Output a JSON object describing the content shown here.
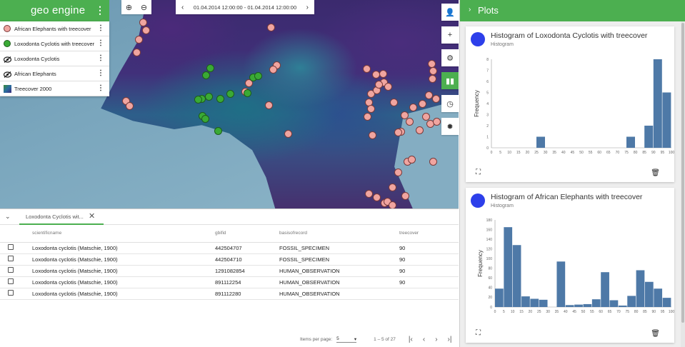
{
  "app": {
    "brand": "geo engine"
  },
  "layers": [
    {
      "label": "African Elephants with treecover",
      "symbol": "pink-point",
      "color": "#f0a5a0"
    },
    {
      "label": "Loxodonta Cyclotis with treecover",
      "symbol": "green-point",
      "color": "#3aaa35"
    },
    {
      "label": "Loxodonta Cyclotis",
      "symbol": "eye-off-icon"
    },
    {
      "label": "African Elephants",
      "symbol": "eye-off-icon"
    },
    {
      "label": "Treecover 2000",
      "symbol": "gradient-raster"
    }
  ],
  "time": {
    "range": "01.04.2014 12:00:00 - 01.04.2014 12:00:00"
  },
  "table": {
    "tab_label": "Loxodonta Cyclotis wit...",
    "columns": [
      "scientificname",
      "gbifid",
      "basisofrecord",
      "treecover"
    ],
    "rows": [
      [
        "Loxodonta cyclotis (Matschie, 1900)",
        "442504707",
        "FOSSIL_SPECIMEN",
        "90"
      ],
      [
        "Loxodonta cyclotis (Matschie, 1900)",
        "442504710",
        "FOSSIL_SPECIMEN",
        "90"
      ],
      [
        "Loxodonta cyclotis (Matschie, 1900)",
        "1291082854",
        "HUMAN_OBSERVATION",
        "90"
      ],
      [
        "Loxodonta cyclotis (Matschie, 1900)",
        "891112254",
        "HUMAN_OBSERVATION",
        "90"
      ],
      [
        "Loxodonta cyclotis (Matschie, 1900)",
        "891112280",
        "HUMAN_OBSERVATION",
        ""
      ]
    ],
    "items_per_page_label": "Items per page:",
    "items_per_page": "5",
    "range_label": "1 – 5 of 27"
  },
  "plots": {
    "title": "Plots",
    "cards": [
      {
        "title": "Histogram of Loxodonta Cyclotis with treecover",
        "subtitle": "Histogram"
      },
      {
        "title": "Histogram of African Elephants with treecover",
        "subtitle": "Histogram"
      }
    ]
  },
  "chart_data": [
    {
      "type": "bar",
      "title": "Histogram of Loxodonta Cyclotis with treecover",
      "ylabel": "Frequency",
      "xlabel": "",
      "x_ticks": [
        "0",
        "5",
        "10",
        "15",
        "20",
        "25",
        "30",
        "35",
        "40",
        "45",
        "50",
        "55",
        "60",
        "65",
        "70",
        "75",
        "80",
        "85",
        "90",
        "95",
        "100"
      ],
      "y_ticks": [
        "0",
        "1",
        "2",
        "3",
        "4",
        "5",
        "6",
        "7",
        "8"
      ],
      "ylim": [
        0,
        8
      ],
      "bin_edges": [
        0,
        5,
        10,
        15,
        20,
        25,
        30,
        35,
        40,
        45,
        50,
        55,
        60,
        65,
        70,
        75,
        80,
        85,
        90,
        95,
        100
      ],
      "values": [
        0,
        0,
        0,
        0,
        0,
        1,
        0,
        0,
        0,
        0,
        0,
        0,
        0,
        0,
        0,
        1,
        0,
        2,
        8,
        5
      ],
      "color": "#4e79a7"
    },
    {
      "type": "bar",
      "title": "Histogram of African Elephants with treecover",
      "ylabel": "Frequency",
      "xlabel": "",
      "x_ticks": [
        "0",
        "5",
        "10",
        "15",
        "20",
        "25",
        "30",
        "35",
        "40",
        "45",
        "50",
        "55",
        "60",
        "65",
        "70",
        "75",
        "80",
        "85",
        "90",
        "95",
        "100"
      ],
      "y_ticks": [
        "0",
        "20",
        "40",
        "60",
        "80",
        "100",
        "120",
        "140",
        "160",
        "180"
      ],
      "ylim": [
        0,
        180
      ],
      "bin_edges": [
        0,
        5,
        10,
        15,
        20,
        25,
        30,
        35,
        40,
        45,
        50,
        55,
        60,
        65,
        70,
        75,
        80,
        85,
        90,
        95,
        100
      ],
      "values": [
        38,
        165,
        128,
        22,
        17,
        15,
        0,
        94,
        4,
        5,
        6,
        16,
        72,
        14,
        3,
        23,
        76,
        52,
        38,
        19
      ],
      "color": "#4e79a7"
    }
  ]
}
